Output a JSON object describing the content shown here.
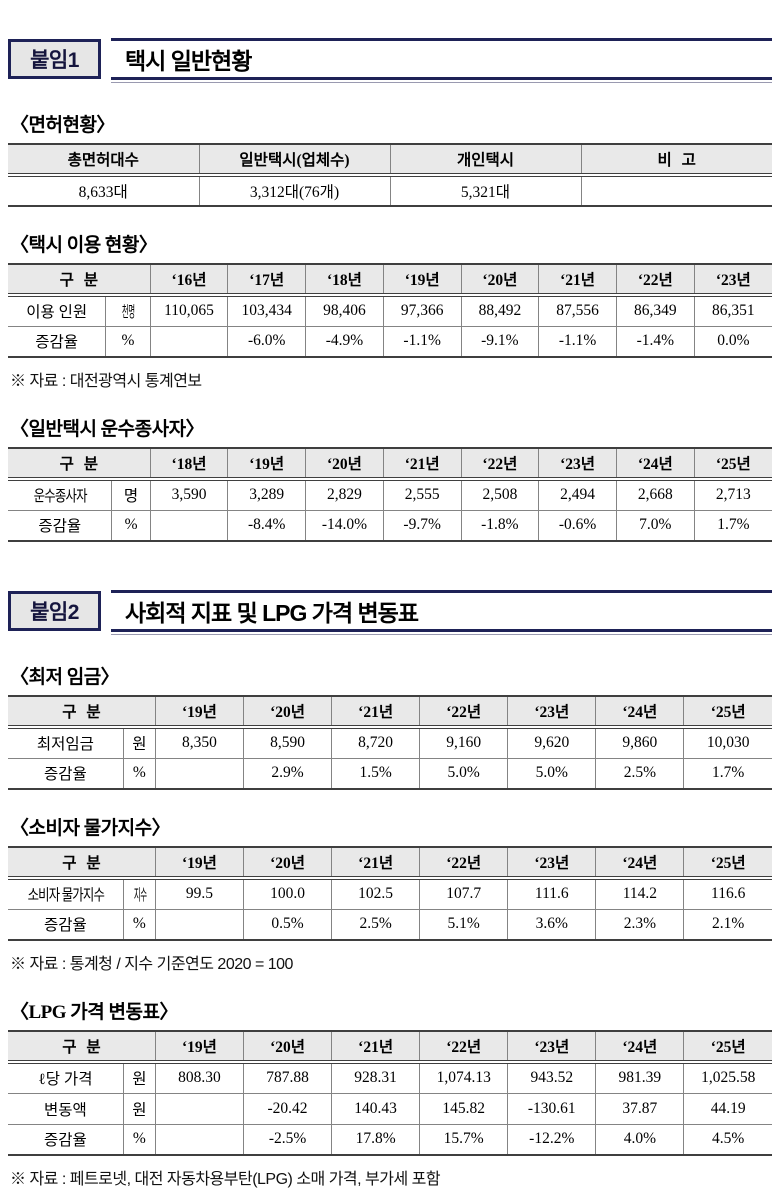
{
  "attachment1": {
    "badge": "붙임1",
    "title": "택시 일반현황",
    "license_section": {
      "heading": "〈면허현황〉",
      "table": {
        "widths": [
          "25%",
          "25%",
          "25%",
          "25%"
        ],
        "head": [
          {
            "text": "총면허대수"
          },
          {
            "text": "일반택시(업체수)"
          },
          {
            "text": "개인택시"
          },
          {
            "text": "비 고"
          }
        ],
        "body": [
          [
            {
              "text": "8,633대"
            },
            {
              "text": "3,312대(76개)"
            },
            {
              "text": "5,321대"
            },
            {
              "text": ""
            }
          ]
        ]
      }
    },
    "usage_section": {
      "heading": "〈택시 이용 현황〉",
      "table": {
        "widths": [
          "12.8%",
          "5.8%",
          "10.17%",
          "10.17%",
          "10.17%",
          "10.17%",
          "10.17%",
          "10.17%",
          "10.17%",
          "10.17%"
        ],
        "head": [
          {
            "text": "구 분",
            "colspan": 2
          },
          {
            "text": "‘16년"
          },
          {
            "text": "‘17년"
          },
          {
            "text": "‘18년"
          },
          {
            "text": "‘19년"
          },
          {
            "text": "‘20년"
          },
          {
            "text": "‘21년"
          },
          {
            "text": "‘22년"
          },
          {
            "text": "‘23년"
          }
        ],
        "body": [
          [
            {
              "text": "이용 인원"
            },
            {
              "text": "천명",
              "cls": "squeeze"
            },
            {
              "text": "110,065"
            },
            {
              "text": "103,434"
            },
            {
              "text": "98,406"
            },
            {
              "text": "97,366"
            },
            {
              "text": "88,492"
            },
            {
              "text": "87,556"
            },
            {
              "text": "86,349"
            },
            {
              "text": "86,351"
            }
          ],
          [
            {
              "text": "증감율"
            },
            {
              "text": "%"
            },
            {
              "text": ""
            },
            {
              "text": "-6.0%"
            },
            {
              "text": "-4.9%"
            },
            {
              "text": "-1.1%"
            },
            {
              "text": "-9.1%"
            },
            {
              "text": "-1.1%"
            },
            {
              "text": "-1.4%"
            },
            {
              "text": "0.0%"
            }
          ]
        ]
      },
      "footnote": "※ 자료 : 대전광역시 통계연보"
    },
    "workers_section": {
      "heading": "〈일반택시 운수종사자〉",
      "table": {
        "widths": [
          "13.6%",
          "5.0%",
          "10.17%",
          "10.17%",
          "10.17%",
          "10.17%",
          "10.17%",
          "10.17%",
          "10.17%",
          "10.17%"
        ],
        "head": [
          {
            "text": "구 분",
            "colspan": 2
          },
          {
            "text": "‘18년"
          },
          {
            "text": "‘19년"
          },
          {
            "text": "‘20년"
          },
          {
            "text": "‘21년"
          },
          {
            "text": "‘22년"
          },
          {
            "text": "‘23년"
          },
          {
            "text": "‘24년"
          },
          {
            "text": "‘25년"
          }
        ],
        "body": [
          [
            {
              "text": "운수종사자",
              "cls": "tight"
            },
            {
              "text": "명"
            },
            {
              "text": "3,590"
            },
            {
              "text": "3,289"
            },
            {
              "text": "2,829"
            },
            {
              "text": "2,555"
            },
            {
              "text": "2,508"
            },
            {
              "text": "2,494"
            },
            {
              "text": "2,668"
            },
            {
              "text": "2,713"
            }
          ],
          [
            {
              "text": "증감율"
            },
            {
              "text": "%"
            },
            {
              "text": ""
            },
            {
              "text": "-8.4%"
            },
            {
              "text": "-14.0%"
            },
            {
              "text": "-9.7%"
            },
            {
              "text": "-1.8%"
            },
            {
              "text": "-0.6%"
            },
            {
              "text": "7.0%"
            },
            {
              "text": "1.7%"
            }
          ]
        ]
      }
    }
  },
  "attachment2": {
    "badge": "붙임2",
    "title": "사회적 지표 및 LPG 가격 변동표",
    "minwage_section": {
      "heading": "〈최저 임금〉",
      "table": {
        "widths": [
          "15.1%",
          "4.2%",
          "11.53%",
          "11.53%",
          "11.53%",
          "11.53%",
          "11.53%",
          "11.53%",
          "11.53%"
        ],
        "head": [
          {
            "text": "구 분",
            "colspan": 2
          },
          {
            "text": "‘19년"
          },
          {
            "text": "‘20년"
          },
          {
            "text": "‘21년"
          },
          {
            "text": "‘22년"
          },
          {
            "text": "‘23년"
          },
          {
            "text": "‘24년"
          },
          {
            "text": "‘25년"
          }
        ],
        "body": [
          [
            {
              "text": "최저임금"
            },
            {
              "text": "원"
            },
            {
              "text": "8,350"
            },
            {
              "text": "8,590"
            },
            {
              "text": "8,720"
            },
            {
              "text": "9,160"
            },
            {
              "text": "9,620"
            },
            {
              "text": "9,860"
            },
            {
              "text": "10,030"
            }
          ],
          [
            {
              "text": "증감율"
            },
            {
              "text": "%"
            },
            {
              "text": ""
            },
            {
              "text": "2.9%"
            },
            {
              "text": "1.5%"
            },
            {
              "text": "5.0%"
            },
            {
              "text": "5.0%"
            },
            {
              "text": "2.5%"
            },
            {
              "text": "1.7%"
            }
          ]
        ]
      }
    },
    "cpi_section": {
      "heading": "〈소비자 물가지수〉",
      "table": {
        "widths": [
          "15.1%",
          "4.2%",
          "11.53%",
          "11.53%",
          "11.53%",
          "11.53%",
          "11.53%",
          "11.53%",
          "11.53%"
        ],
        "head": [
          {
            "text": "구 분",
            "colspan": 2
          },
          {
            "text": "‘19년"
          },
          {
            "text": "‘20년"
          },
          {
            "text": "‘21년"
          },
          {
            "text": "‘22년"
          },
          {
            "text": "‘23년"
          },
          {
            "text": "‘24년"
          },
          {
            "text": "‘25년"
          }
        ],
        "body": [
          [
            {
              "text": "소비자 물가지수",
              "cls": "tight"
            },
            {
              "text": "지수",
              "cls": "squeeze"
            },
            {
              "text": "99.5"
            },
            {
              "text": "100.0"
            },
            {
              "text": "102.5"
            },
            {
              "text": "107.7"
            },
            {
              "text": "111.6"
            },
            {
              "text": "114.2"
            },
            {
              "text": "116.6"
            }
          ],
          [
            {
              "text": "증감율"
            },
            {
              "text": "%"
            },
            {
              "text": ""
            },
            {
              "text": "0.5%"
            },
            {
              "text": "2.5%"
            },
            {
              "text": "5.1%"
            },
            {
              "text": "3.6%"
            },
            {
              "text": "2.3%"
            },
            {
              "text": "2.1%"
            }
          ]
        ]
      },
      "footnote": "※ 자료 : 통계청 / 지수 기준연도 2020 = 100"
    },
    "lpg_section": {
      "heading": "〈LPG 가격 변동표〉",
      "table": {
        "widths": [
          "15.1%",
          "4.2%",
          "11.53%",
          "11.53%",
          "11.53%",
          "11.53%",
          "11.53%",
          "11.53%",
          "11.53%"
        ],
        "head": [
          {
            "text": "구 분",
            "colspan": 2
          },
          {
            "text": "‘19년"
          },
          {
            "text": "‘20년"
          },
          {
            "text": "‘21년"
          },
          {
            "text": "‘22년"
          },
          {
            "text": "‘23년"
          },
          {
            "text": "‘24년"
          },
          {
            "text": "‘25년"
          }
        ],
        "body": [
          [
            {
              "text": "ℓ당 가격"
            },
            {
              "text": "원"
            },
            {
              "text": "808.30"
            },
            {
              "text": "787.88"
            },
            {
              "text": "928.31"
            },
            {
              "text": "1,074.13"
            },
            {
              "text": "943.52"
            },
            {
              "text": "981.39"
            },
            {
              "text": "1,025.58"
            }
          ],
          [
            {
              "text": "변동액"
            },
            {
              "text": "원"
            },
            {
              "text": ""
            },
            {
              "text": "-20.42"
            },
            {
              "text": "140.43"
            },
            {
              "text": "145.82"
            },
            {
              "text": "-130.61"
            },
            {
              "text": "37.87"
            },
            {
              "text": "44.19"
            }
          ],
          [
            {
              "text": "증감율"
            },
            {
              "text": "%"
            },
            {
              "text": ""
            },
            {
              "text": "-2.5%"
            },
            {
              "text": "17.8%"
            },
            {
              "text": "15.7%"
            },
            {
              "text": "-12.2%"
            },
            {
              "text": "4.0%"
            },
            {
              "text": "4.5%"
            }
          ]
        ]
      },
      "footnote": "※ 자료 : 페트로넷, 대전 자동차용부탄(LPG) 소매 가격, 부가세 포함"
    }
  }
}
